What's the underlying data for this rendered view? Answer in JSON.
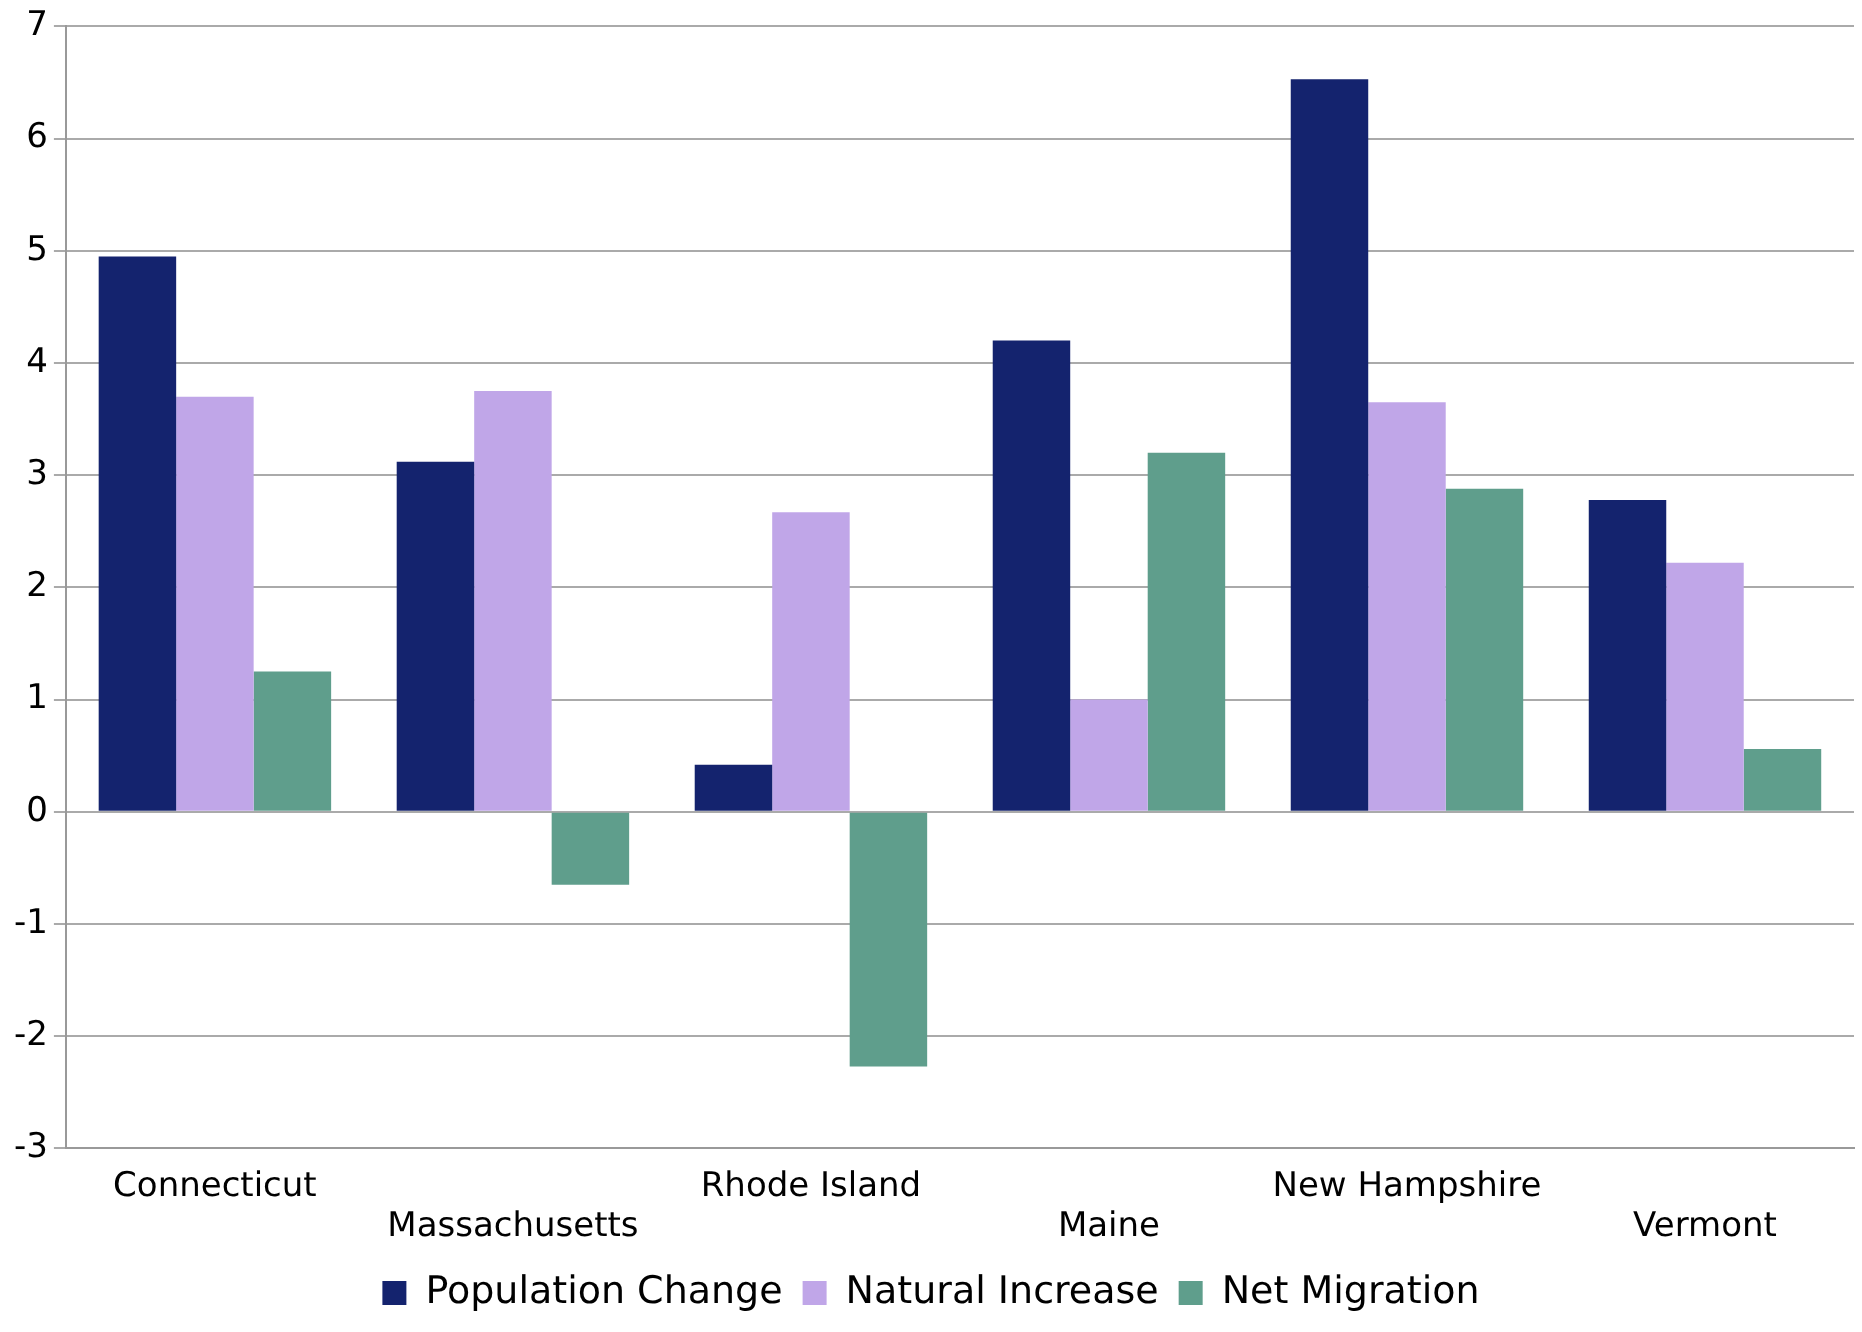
{
  "chart_data": {
    "type": "bar",
    "categories": [
      "Connecticut",
      "Massachusetts",
      "Rhode Island",
      "Maine",
      "New Hampshire",
      "Vermont"
    ],
    "series": [
      {
        "name": "Population Change",
        "color": "#14236e",
        "values": [
          4.95,
          3.12,
          0.42,
          4.2,
          6.53,
          2.78
        ]
      },
      {
        "name": "Natural Increase",
        "color": "#c0a6e8",
        "values": [
          3.7,
          3.75,
          2.67,
          1.0,
          3.65,
          2.22
        ]
      },
      {
        "name": "Net Migration",
        "color": "#5f9e8c",
        "values": [
          1.25,
          -0.65,
          -2.27,
          3.2,
          2.88,
          0.56
        ]
      }
    ],
    "ylim": [
      -3,
      7
    ],
    "yticks": [
      -3,
      -2,
      -1,
      0,
      1,
      2,
      3,
      4,
      5,
      6,
      7
    ],
    "grid": "y",
    "legend": "bottom"
  }
}
